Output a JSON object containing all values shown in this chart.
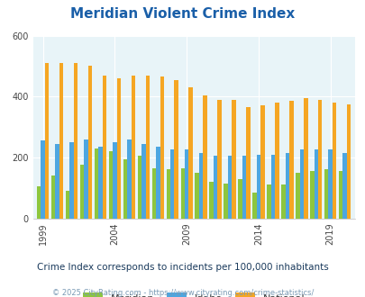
{
  "title": "Meridian Violent Crime Index",
  "years": [
    1999,
    2000,
    2001,
    2002,
    2003,
    2004,
    2005,
    2006,
    2007,
    2008,
    2009,
    2010,
    2011,
    2012,
    2013,
    2014,
    2015,
    2016,
    2017,
    2018,
    2019,
    2020
  ],
  "meridian": [
    105,
    140,
    90,
    175,
    230,
    220,
    195,
    205,
    165,
    160,
    165,
    150,
    120,
    115,
    130,
    85,
    110,
    110,
    150,
    155,
    160,
    155
  ],
  "idaho": [
    255,
    245,
    250,
    260,
    235,
    250,
    260,
    245,
    235,
    225,
    225,
    215,
    205,
    205,
    205,
    210,
    210,
    215,
    225,
    225,
    225,
    215
  ],
  "national": [
    510,
    510,
    510,
    500,
    470,
    460,
    470,
    470,
    465,
    455,
    430,
    405,
    390,
    390,
    365,
    370,
    380,
    385,
    395,
    390,
    380,
    375
  ],
  "ylim": [
    0,
    600
  ],
  "yticks": [
    0,
    200,
    400,
    600
  ],
  "xtick_labels": [
    "1999",
    "2004",
    "2009",
    "2014",
    "2019"
  ],
  "bar_width": 0.28,
  "meridian_color": "#8dc63f",
  "idaho_color": "#4da6e0",
  "national_color": "#f5a623",
  "bg_color": "#e8f4f8",
  "title_color": "#1a5fa8",
  "subtitle": "Crime Index corresponds to incidents per 100,000 inhabitants",
  "footer": "© 2025 CityRating.com - https://www.cityrating.com/crime-statistics/",
  "subtitle_color": "#1a3a5c",
  "footer_color": "#7a9ab5"
}
